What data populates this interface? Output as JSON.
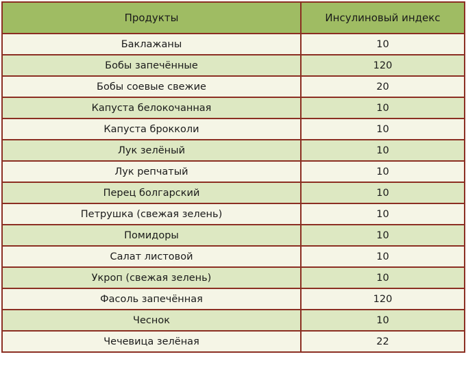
{
  "table": {
    "headers": {
      "product": "Продукты",
      "index": "Инсулиновый индекс"
    },
    "rows": [
      {
        "product": "Баклажаны",
        "index": "10"
      },
      {
        "product": "Бобы запечённые",
        "index": "120"
      },
      {
        "product": "Бобы соевые свежие",
        "index": "20"
      },
      {
        "product": "Капуста белокочанная",
        "index": "10"
      },
      {
        "product": "Капуста брокколи",
        "index": "10"
      },
      {
        "product": "Лук зелёный",
        "index": "10"
      },
      {
        "product": "Лук репчатый",
        "index": "10"
      },
      {
        "product": "Перец болгарский",
        "index": "10"
      },
      {
        "product": "Петрушка (свежая зелень)",
        "index": "10"
      },
      {
        "product": "Помидоры",
        "index": "10"
      },
      {
        "product": "Салат листовой",
        "index": "10"
      },
      {
        "product": "Укроп (свежая зелень)",
        "index": "10"
      },
      {
        "product": "Фасоль запечённая",
        "index": "120"
      },
      {
        "product": "Чеснок",
        "index": "10"
      },
      {
        "product": "Чечевица зелёная",
        "index": "22"
      }
    ]
  },
  "colors": {
    "header_bg": "#9fbc63",
    "row_light": "#f5f5e6",
    "row_dark": "#dde8c2",
    "border": "#8b2e22"
  }
}
